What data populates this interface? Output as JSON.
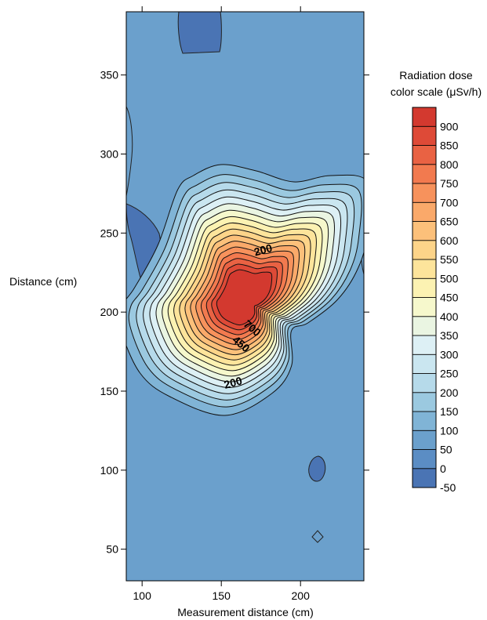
{
  "chart_data": {
    "type": "heatmap",
    "subtype": "filled-contour",
    "title": "",
    "xlabel": "Measurement distance (cm)",
    "ylabel": "Distance (cm)",
    "xlim": [
      90,
      240
    ],
    "ylim": [
      30,
      390
    ],
    "x_ticks": [
      100,
      150,
      200
    ],
    "y_ticks": [
      50,
      100,
      150,
      200,
      250,
      300,
      350
    ],
    "colorbar": {
      "title_line1": "Radiation dose",
      "title_line2": "color scale (μSv/h)",
      "levels": [
        -50,
        0,
        50,
        100,
        150,
        200,
        250,
        300,
        350,
        400,
        450,
        500,
        550,
        600,
        650,
        700,
        750,
        800,
        850,
        900
      ],
      "colors": [
        "#4a74b4",
        "#5b8dc4",
        "#6ba0cc",
        "#80b4d6",
        "#9bc9e0",
        "#b6daea",
        "#cae6f0",
        "#ddf0f5",
        "#eaf5e2",
        "#f6f8cc",
        "#fcf2b2",
        "#fde49b",
        "#fdd489",
        "#fcc07a",
        "#faa96a",
        "#f7925c",
        "#f27a4f",
        "#e96243",
        "#de4a37",
        "#d3392f"
      ]
    },
    "background_level": 50,
    "hotspot": {
      "peak_x": 172,
      "peak_y": 208,
      "peak_value": 900,
      "contour_labels": [
        {
          "value": "200",
          "x": 177,
          "y": 237
        },
        {
          "value": "700",
          "x": 168,
          "y": 188
        },
        {
          "value": "450",
          "x": 161,
          "y": 178
        },
        {
          "value": "200",
          "x": 158,
          "y": 153
        }
      ]
    },
    "low_regions": [
      {
        "value": -50,
        "x": 138,
        "y": 375
      },
      {
        "value": -50,
        "x": 95,
        "y": 245
      },
      {
        "value": -50,
        "x": 209,
        "y": 100
      }
    ],
    "legend_placement": "right"
  }
}
